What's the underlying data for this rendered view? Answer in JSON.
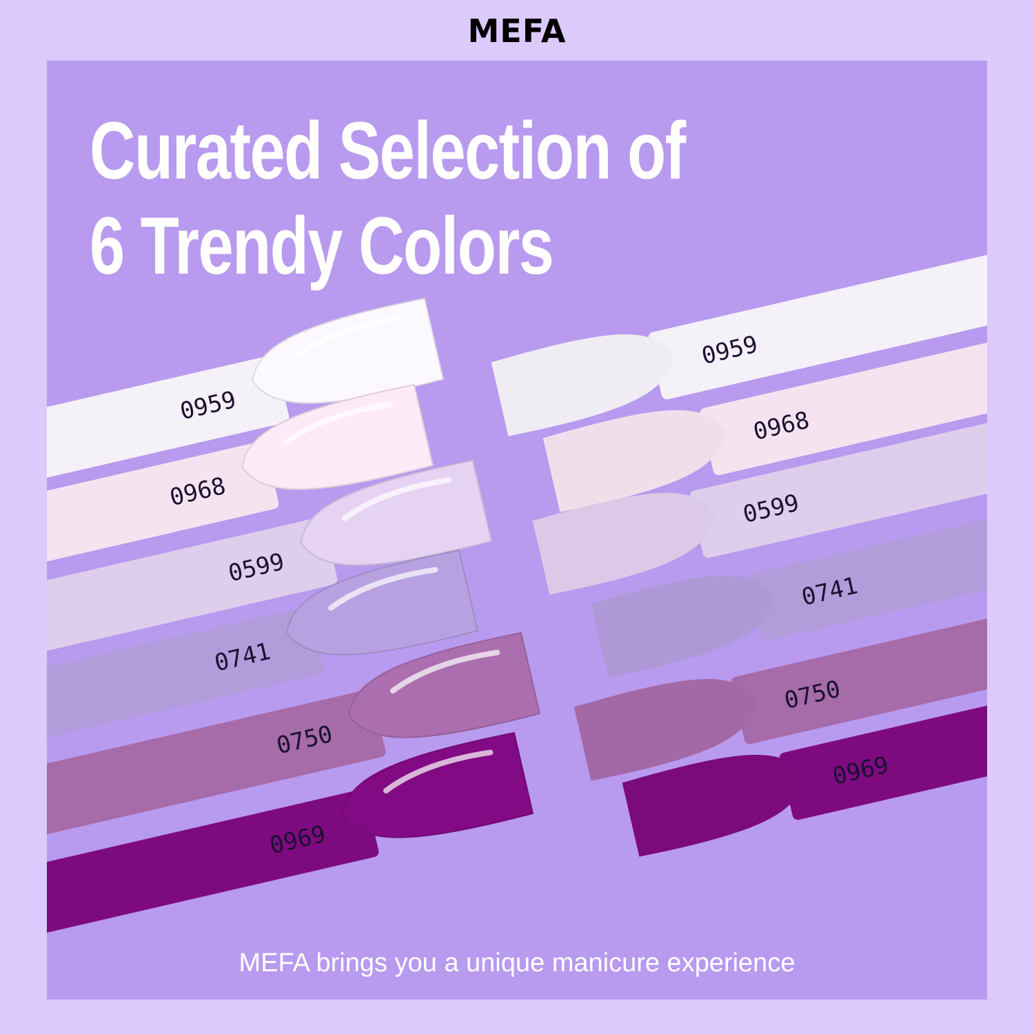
{
  "brand": "MEFA",
  "headline": {
    "line1": "Curated Selection of",
    "line2": "6 Trendy Colors"
  },
  "tagline": "MEFA brings you a unique manicure experience",
  "colors": {
    "outer_bg": "#dccafd",
    "panel_bg": "#b89aef"
  },
  "swatches": [
    {
      "code": "0959",
      "color": "#f5f1f8"
    },
    {
      "code": "0968",
      "color": "#f7e3f0"
    },
    {
      "code": "0599",
      "color": "#dfcdec"
    },
    {
      "code": "0741",
      "color": "#b29cda"
    },
    {
      "code": "0750",
      "color": "#a66ba9"
    },
    {
      "code": "0969",
      "color": "#7e0a80"
    }
  ]
}
